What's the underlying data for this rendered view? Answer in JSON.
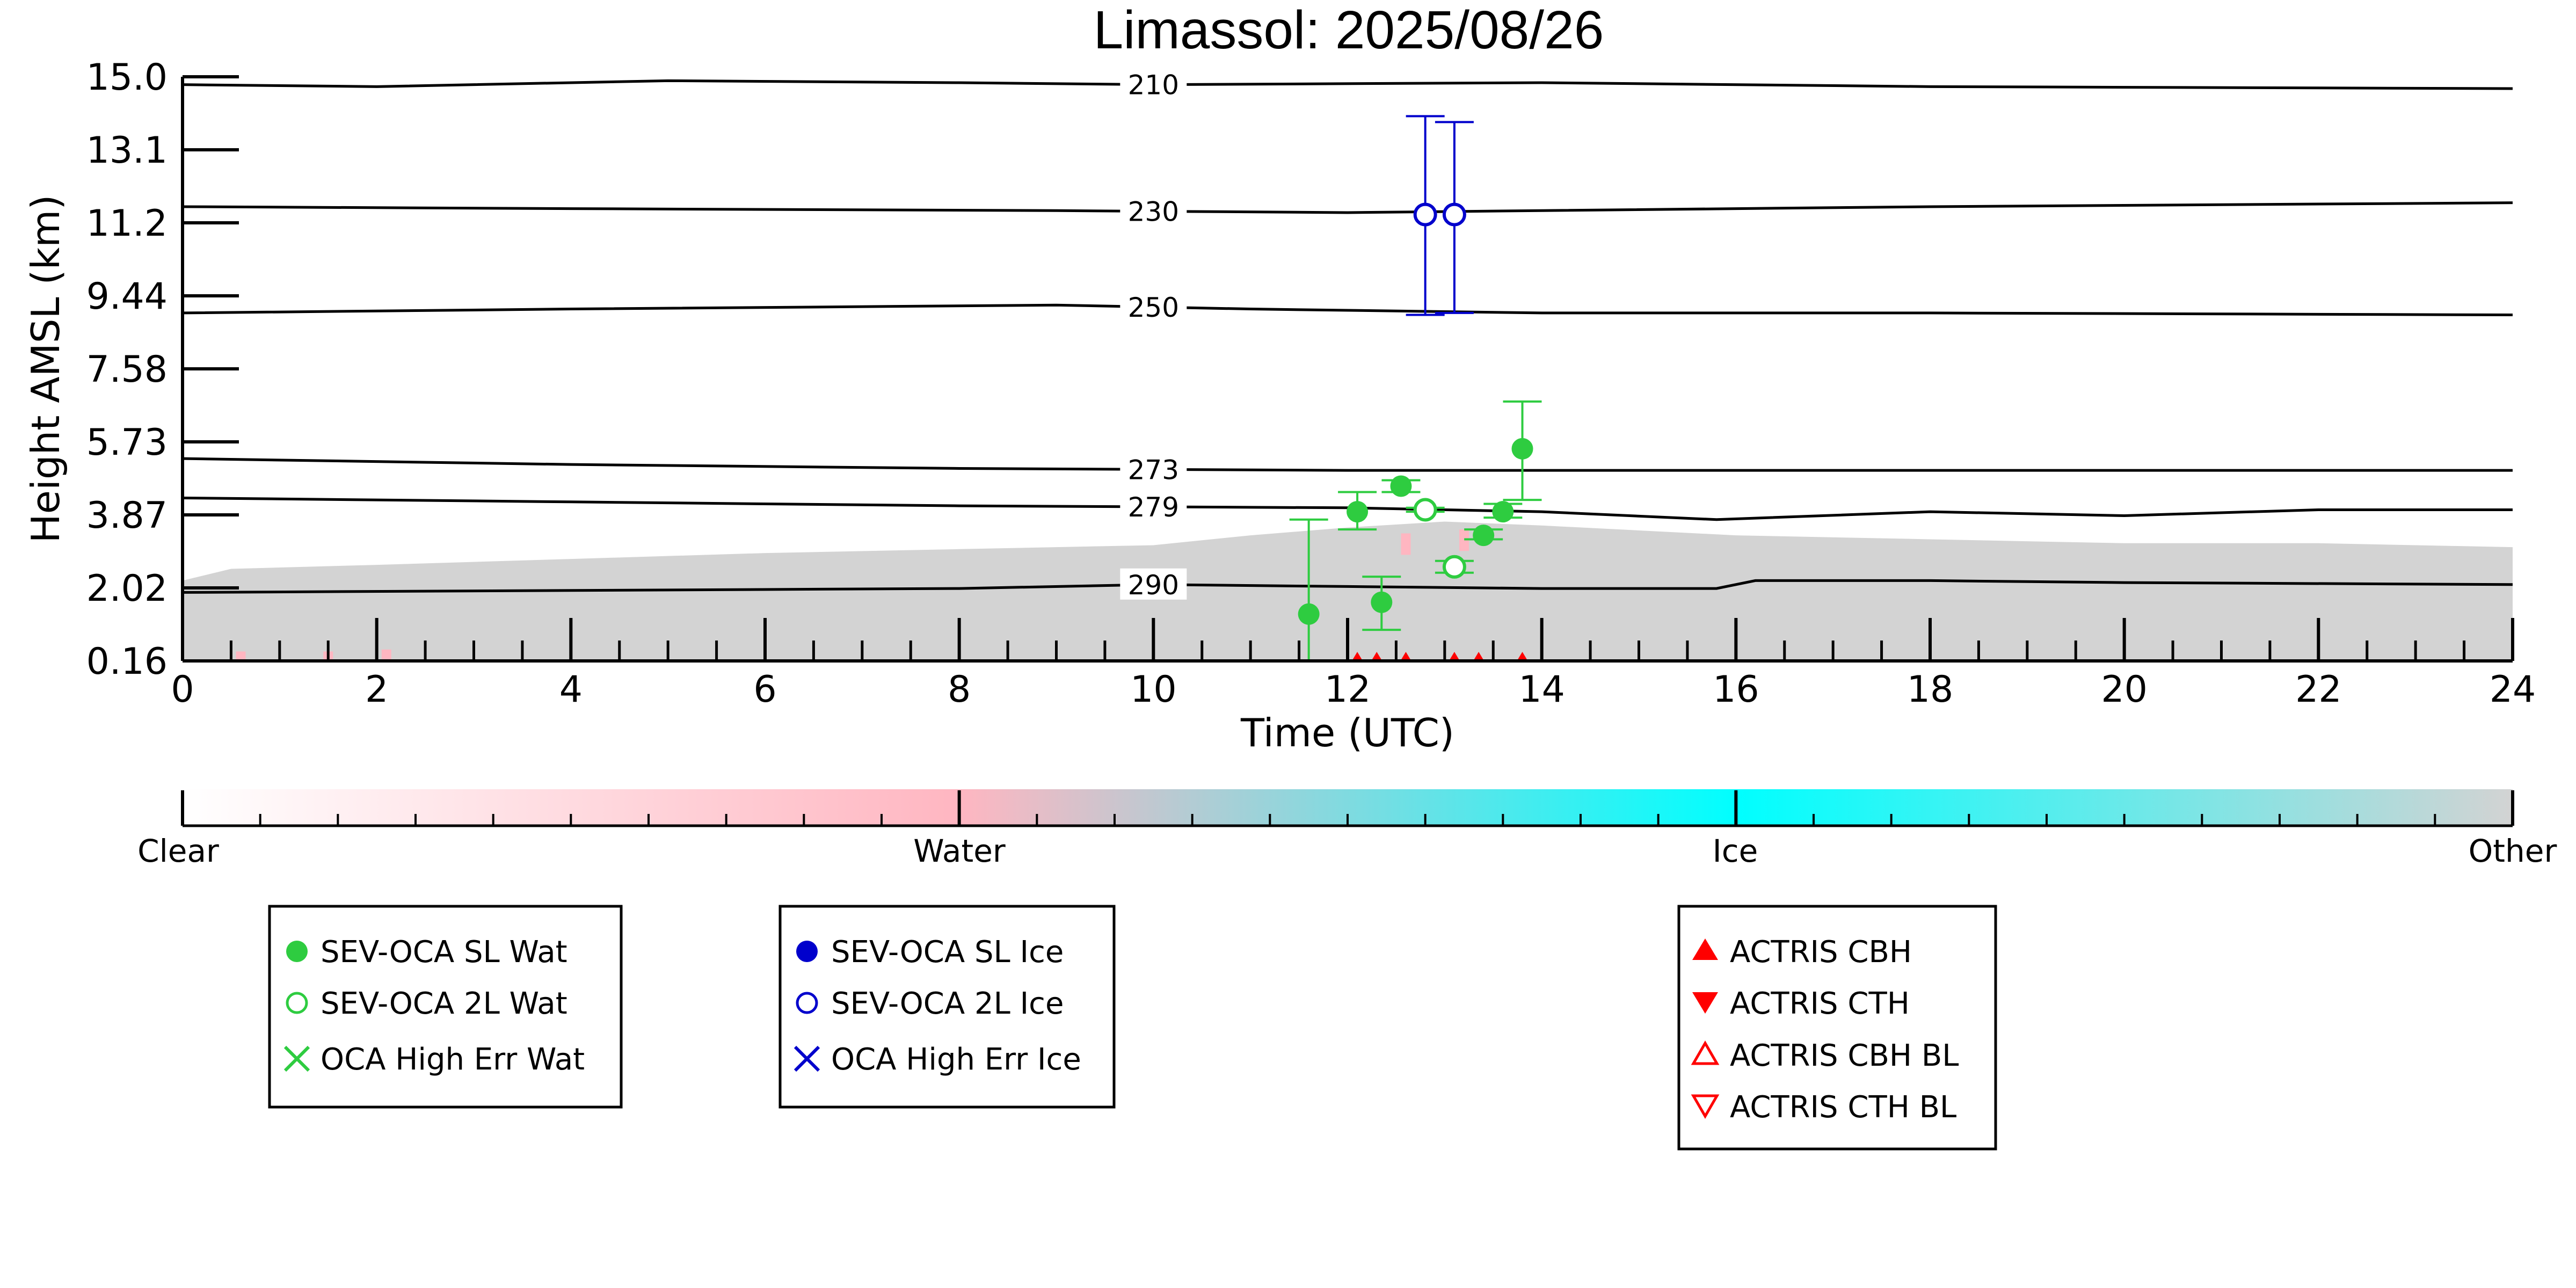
{
  "chart_data": {
    "type": "scatter",
    "title": "Limassol: 2025/08/26",
    "xlabel": "Time (UTC)",
    "ylabel": "Height AMSL (km)",
    "xlim": [
      0,
      24
    ],
    "ylim": [
      0.16,
      15.0
    ],
    "x_ticks": [
      "0",
      "2",
      "4",
      "6",
      "8",
      "10",
      "12",
      "14",
      "16",
      "18",
      "20",
      "22",
      "24"
    ],
    "y_ticks": [
      "15.0",
      "13.1",
      "11.2",
      "9.44",
      "7.58",
      "5.73",
      "3.87",
      "2.02",
      "0.16"
    ],
    "grid": false,
    "background_classification": {
      "description_source": "colorbar",
      "colorbar_labels": [
        "Clear",
        "Water",
        "Ice",
        "Other"
      ],
      "colors": {
        "Clear": "#ffffff",
        "Water": "#ffb6c1",
        "Ice": "#00ffff",
        "Other": "#d3d3d3"
      },
      "other_layer_top_km": [
        [
          0,
          2.2
        ],
        [
          0.5,
          2.5
        ],
        [
          2,
          2.6
        ],
        [
          4,
          2.75
        ],
        [
          6,
          2.9
        ],
        [
          8,
          3.0
        ],
        [
          10,
          3.1
        ],
        [
          11,
          3.35
        ],
        [
          12,
          3.55
        ],
        [
          13,
          3.7
        ],
        [
          14,
          3.6
        ],
        [
          16,
          3.35
        ],
        [
          18,
          3.25
        ],
        [
          20,
          3.15
        ],
        [
          22,
          3.15
        ],
        [
          24,
          3.05
        ]
      ],
      "water_patches": [
        {
          "x": 0.6,
          "top_km": 0.4
        },
        {
          "x": 1.5,
          "top_km": 0.4
        },
        {
          "x": 2.1,
          "top_km": 0.45
        },
        {
          "x": 12.6,
          "top_km": 3.4
        },
        {
          "x": 13.2,
          "top_km": 3.5
        }
      ]
    },
    "isotherms": [
      {
        "label": "210",
        "points": [
          [
            0,
            14.8
          ],
          [
            2,
            14.75
          ],
          [
            5,
            14.9
          ],
          [
            8,
            14.85
          ],
          [
            10,
            14.8
          ],
          [
            14,
            14.85
          ],
          [
            18,
            14.75
          ],
          [
            24,
            14.7
          ]
        ]
      },
      {
        "label": "230",
        "points": [
          [
            0,
            11.7
          ],
          [
            4,
            11.65
          ],
          [
            9,
            11.6
          ],
          [
            12,
            11.55
          ],
          [
            14,
            11.6
          ],
          [
            18,
            11.7
          ],
          [
            24,
            11.8
          ]
        ]
      },
      {
        "label": "250",
        "points": [
          [
            0,
            9.0
          ],
          [
            4,
            9.1
          ],
          [
            9,
            9.2
          ],
          [
            11,
            9.1
          ],
          [
            14,
            9.0
          ],
          [
            18,
            9.0
          ],
          [
            24,
            8.95
          ]
        ]
      },
      {
        "label": "273",
        "points": [
          [
            0,
            5.3
          ],
          [
            4,
            5.15
          ],
          [
            8,
            5.05
          ],
          [
            12,
            5.0
          ],
          [
            16,
            5.0
          ],
          [
            20,
            5.0
          ],
          [
            24,
            5.0
          ]
        ]
      },
      {
        "label": "279",
        "points": [
          [
            0,
            4.3
          ],
          [
            4,
            4.2
          ],
          [
            8,
            4.1
          ],
          [
            12,
            4.05
          ],
          [
            14,
            3.95
          ],
          [
            15.8,
            3.75
          ],
          [
            18,
            3.95
          ],
          [
            20,
            3.85
          ],
          [
            22,
            4.0
          ],
          [
            24,
            4.0
          ]
        ]
      },
      {
        "label": "290",
        "points": [
          [
            0,
            1.9
          ],
          [
            4,
            1.95
          ],
          [
            8,
            2.0
          ],
          [
            10,
            2.1
          ],
          [
            12,
            2.05
          ],
          [
            14,
            2.0
          ],
          [
            15.8,
            2.0
          ],
          [
            16.2,
            2.2
          ],
          [
            18,
            2.2
          ],
          [
            20,
            2.15
          ],
          [
            24,
            2.1
          ]
        ]
      }
    ],
    "series": [
      {
        "name": "SEV-OCA SL Wat",
        "color": "#2ecc40",
        "marker": "filled-circle",
        "points": [
          {
            "x": 11.6,
            "y": 1.35,
            "err_low": 0.16,
            "err_high": 3.75
          },
          {
            "x": 12.1,
            "y": 3.95,
            "err_low": 3.5,
            "err_high": 4.45
          },
          {
            "x": 12.35,
            "y": 1.65,
            "err_low": 0.95,
            "err_high": 2.3
          },
          {
            "x": 12.55,
            "y": 4.6,
            "err_low": 4.45,
            "err_high": 4.75
          },
          {
            "x": 13.4,
            "y": 3.35,
            "err_low": 3.25,
            "err_high": 3.5
          },
          {
            "x": 13.6,
            "y": 3.95,
            "err_low": 3.8,
            "err_high": 4.15
          },
          {
            "x": 13.8,
            "y": 5.55,
            "err_low": 4.25,
            "err_high": 6.75
          }
        ]
      },
      {
        "name": "SEV-OCA 2L Wat",
        "color": "#2ecc40",
        "marker": "open-circle",
        "points": [
          {
            "x": 12.8,
            "y": 4.0,
            "err_low": 3.95,
            "err_high": 4.05
          },
          {
            "x": 13.1,
            "y": 2.55,
            "err_low": 2.4,
            "err_high": 2.7
          }
        ]
      },
      {
        "name": "OCA High Err Wat",
        "color": "#2ecc40",
        "marker": "x",
        "points": []
      },
      {
        "name": "SEV-OCA SL Ice",
        "color": "#0000cc",
        "marker": "filled-circle",
        "points": []
      },
      {
        "name": "SEV-OCA 2L Ice",
        "color": "#0000cc",
        "marker": "open-circle",
        "points": [
          {
            "x": 12.8,
            "y": 11.5,
            "err_low": 8.95,
            "err_high": 14.0
          },
          {
            "x": 13.1,
            "y": 11.5,
            "err_low": 9.0,
            "err_high": 13.85
          }
        ]
      },
      {
        "name": "OCA High Err Ice",
        "color": "#0000cc",
        "marker": "x",
        "points": []
      },
      {
        "name": "ACTRIS CBH",
        "color": "#ff0000",
        "marker": "triangle-up-filled",
        "points": [
          {
            "x": 12.1,
            "y": 0.2
          },
          {
            "x": 12.3,
            "y": 0.2
          },
          {
            "x": 12.6,
            "y": 0.2
          },
          {
            "x": 13.1,
            "y": 0.2
          },
          {
            "x": 13.35,
            "y": 0.2
          },
          {
            "x": 13.8,
            "y": 0.2
          }
        ]
      },
      {
        "name": "ACTRIS CTH",
        "color": "#ff0000",
        "marker": "triangle-down-filled",
        "points": []
      },
      {
        "name": "ACTRIS CBH BL",
        "color": "#ff0000",
        "marker": "triangle-up-open",
        "points": []
      },
      {
        "name": "ACTRIS CTH BL",
        "color": "#ff0000",
        "marker": "triangle-down-open",
        "points": []
      }
    ],
    "legends": [
      {
        "placement": "bottom-left",
        "entries": [
          "SEV-OCA SL Wat",
          "SEV-OCA 2L Wat",
          "OCA High Err Wat"
        ]
      },
      {
        "placement": "bottom-center-left",
        "entries": [
          "SEV-OCA SL Ice",
          "SEV-OCA 2L Ice",
          "OCA High Err Ice"
        ]
      },
      {
        "placement": "bottom-right",
        "entries": [
          "ACTRIS CBH",
          "ACTRIS CTH",
          "ACTRIS CBH BL",
          "ACTRIS CTH BL"
        ]
      }
    ]
  }
}
